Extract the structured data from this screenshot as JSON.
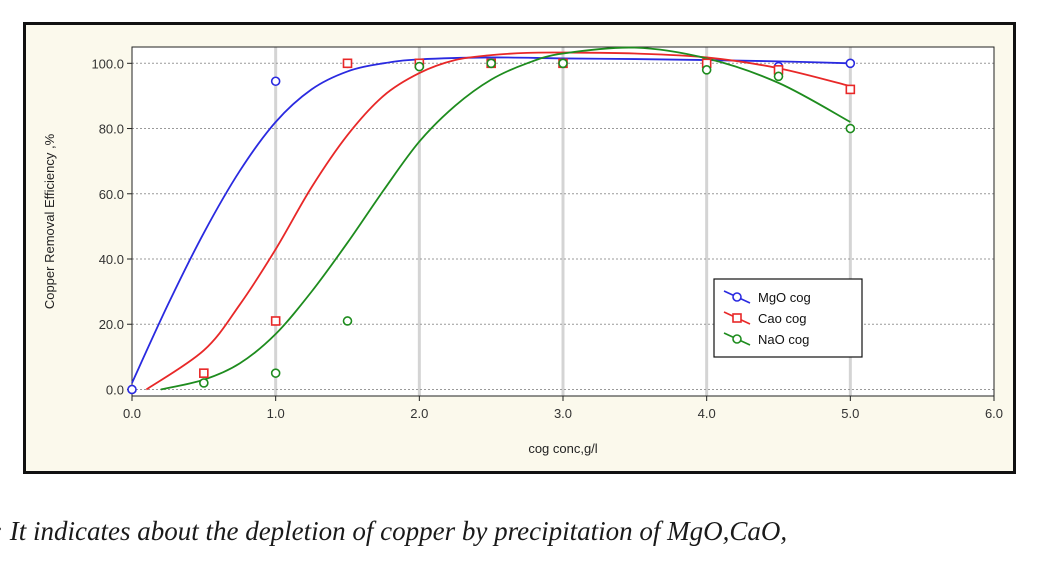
{
  "caption": ": It indicates about the depletion of copper by precipitation of MgO,CaO,",
  "colors": {
    "background": "#fbf9ec",
    "plot": "#ffffff",
    "grid": "#d4d4d4"
  },
  "chart_data": {
    "type": "scatter",
    "title": "",
    "xlabel": "cog conc,g/l",
    "ylabel": "Copper Removal Efficiency ,%",
    "xlim": [
      0,
      6
    ],
    "ylim": [
      -2,
      105
    ],
    "x_ticks": [
      "0.0",
      "1.0",
      "2.0",
      "3.0",
      "4.0",
      "5.0",
      "6.0"
    ],
    "y_ticks": [
      "0.0",
      "20.0",
      "40.0",
      "60.0",
      "80.0",
      "100.0"
    ],
    "grid": true,
    "legend_position": "lower-right",
    "series": [
      {
        "name": "MgO cog",
        "color": "#2a2ae0",
        "marker": "circle",
        "points": [
          [
            0,
            0
          ],
          [
            1,
            94.5
          ],
          [
            1.5,
            100
          ],
          [
            2,
            100
          ],
          [
            2.5,
            100
          ],
          [
            3,
            100
          ],
          [
            4,
            100
          ],
          [
            4.5,
            99
          ],
          [
            5,
            100
          ]
        ],
        "fit": [
          [
            0,
            2
          ],
          [
            0.25,
            26
          ],
          [
            0.5,
            48
          ],
          [
            0.75,
            67
          ],
          [
            1,
            82
          ],
          [
            1.25,
            92
          ],
          [
            1.5,
            97.5
          ],
          [
            1.75,
            100
          ],
          [
            2,
            101.2
          ],
          [
            2.5,
            101.8
          ],
          [
            3,
            101.5
          ],
          [
            3.5,
            101.3
          ],
          [
            4,
            101
          ],
          [
            4.5,
            100.6
          ],
          [
            5,
            100
          ]
        ]
      },
      {
        "name": "Cao cog",
        "color": "#e82828",
        "marker": "square",
        "points": [
          [
            0.5,
            5
          ],
          [
            1,
            21
          ],
          [
            1.5,
            100
          ],
          [
            2,
            100
          ],
          [
            2.5,
            100
          ],
          [
            3,
            100
          ],
          [
            4,
            100
          ],
          [
            4.5,
            98
          ],
          [
            5,
            92
          ]
        ],
        "fit": [
          [
            0.1,
            0
          ],
          [
            0.5,
            12
          ],
          [
            0.75,
            26
          ],
          [
            1,
            43
          ],
          [
            1.25,
            62
          ],
          [
            1.5,
            78
          ],
          [
            1.75,
            90
          ],
          [
            2,
            97
          ],
          [
            2.25,
            101
          ],
          [
            2.5,
            102.5
          ],
          [
            2.75,
            103.2
          ],
          [
            3,
            103.3
          ],
          [
            3.5,
            103
          ],
          [
            4,
            101.8
          ],
          [
            4.5,
            98.5
          ],
          [
            5,
            93
          ]
        ]
      },
      {
        "name": "NaO cog",
        "color": "#1e8c1e",
        "marker": "circle",
        "points": [
          [
            0.5,
            2
          ],
          [
            1,
            5
          ],
          [
            1.5,
            21
          ],
          [
            2,
            99
          ],
          [
            2.5,
            100
          ],
          [
            3,
            100
          ],
          [
            4,
            98
          ],
          [
            4.5,
            96
          ],
          [
            5,
            80
          ]
        ],
        "fit": [
          [
            0.2,
            0
          ],
          [
            0.5,
            3
          ],
          [
            0.75,
            8
          ],
          [
            1,
            17
          ],
          [
            1.25,
            30
          ],
          [
            1.5,
            45
          ],
          [
            1.75,
            61
          ],
          [
            2,
            76
          ],
          [
            2.25,
            87
          ],
          [
            2.5,
            95
          ],
          [
            2.75,
            100
          ],
          [
            3,
            103
          ],
          [
            3.5,
            104.8
          ],
          [
            4,
            101.5
          ],
          [
            4.5,
            94
          ],
          [
            5,
            82
          ]
        ]
      }
    ]
  }
}
